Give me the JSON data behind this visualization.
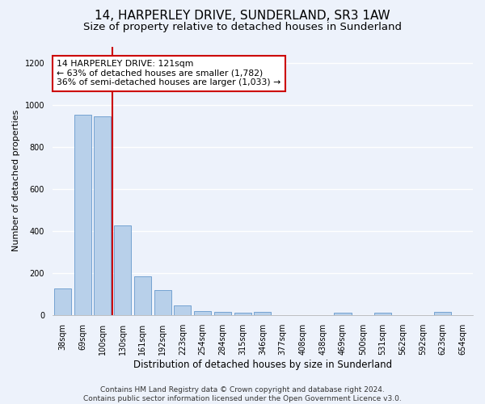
{
  "title": "14, HARPERLEY DRIVE, SUNDERLAND, SR3 1AW",
  "subtitle": "Size of property relative to detached houses in Sunderland",
  "xlabel": "Distribution of detached houses by size in Sunderland",
  "ylabel": "Number of detached properties",
  "categories": [
    "38sqm",
    "69sqm",
    "100sqm",
    "130sqm",
    "161sqm",
    "192sqm",
    "223sqm",
    "254sqm",
    "284sqm",
    "315sqm",
    "346sqm",
    "377sqm",
    "408sqm",
    "438sqm",
    "469sqm",
    "500sqm",
    "531sqm",
    "562sqm",
    "592sqm",
    "623sqm",
    "654sqm"
  ],
  "values": [
    125,
    955,
    945,
    425,
    185,
    120,
    45,
    20,
    15,
    10,
    15,
    0,
    0,
    0,
    10,
    0,
    10,
    0,
    0,
    15,
    0
  ],
  "bar_color": "#b8d0ea",
  "bar_edge_color": "#6699cc",
  "vline_color": "#cc0000",
  "annotation_text": "14 HARPERLEY DRIVE: 121sqm\n← 63% of detached houses are smaller (1,782)\n36% of semi-detached houses are larger (1,033) →",
  "annotation_box_color": "#ffffff",
  "annotation_box_edge": "#cc0000",
  "ylim": [
    0,
    1280
  ],
  "yticks": [
    0,
    200,
    400,
    600,
    800,
    1000,
    1200
  ],
  "footer": "Contains HM Land Registry data © Crown copyright and database right 2024.\nContains public sector information licensed under the Open Government Licence v3.0.",
  "bg_color": "#edf2fb",
  "grid_color": "#ffffff",
  "title_fontsize": 11,
  "subtitle_fontsize": 9.5,
  "xlabel_fontsize": 8.5,
  "ylabel_fontsize": 8,
  "tick_fontsize": 7,
  "footer_fontsize": 6.5,
  "annotation_fontsize": 7.8
}
